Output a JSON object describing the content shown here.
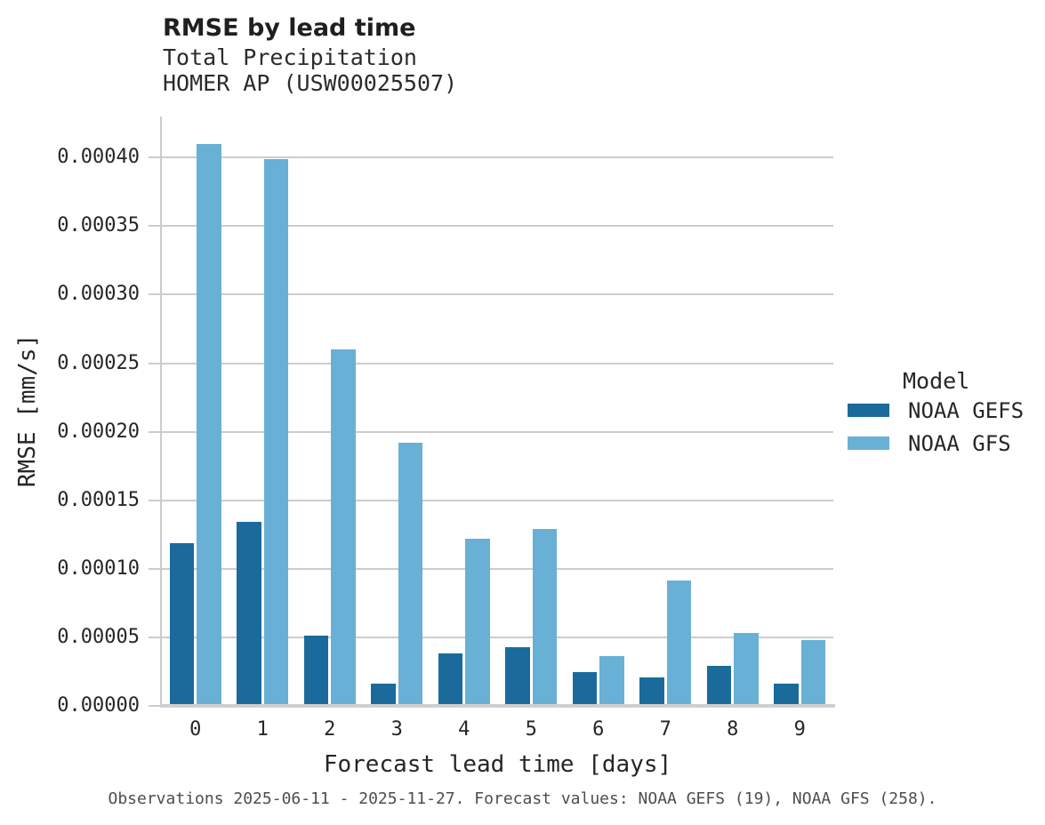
{
  "header": {
    "title": "RMSE by lead time",
    "subtitle_line1": "Total Precipitation",
    "subtitle_line2": "HOMER AP (USW00025507)"
  },
  "chart_data": {
    "type": "bar",
    "title": "RMSE by lead time",
    "subtitle": "Total Precipitation — HOMER AP (USW00025507)",
    "categories": [
      "0",
      "1",
      "2",
      "3",
      "4",
      "5",
      "6",
      "7",
      "8",
      "9"
    ],
    "series": [
      {
        "name": "NOAA GEFS",
        "color": "#1a6b9c",
        "values": [
          0.000119,
          0.000134,
          5.1e-05,
          1.6e-05,
          3.8e-05,
          4.25e-05,
          2.45e-05,
          2.05e-05,
          2.9e-05,
          1.6e-05
        ]
      },
      {
        "name": "NOAA GFS",
        "color": "#69b0d7",
        "values": [
          0.00041,
          0.000399,
          0.00026,
          0.000192,
          0.000122,
          0.000129,
          3.6e-05,
          9.15e-05,
          5.35e-05,
          4.8e-05
        ]
      }
    ],
    "xlabel": "Forecast lead time [days]",
    "ylabel": "RMSE [mm/s]",
    "ylim": [
      0,
      0.00043
    ],
    "yticks": [
      0.0,
      5e-05,
      0.0001,
      0.00015,
      0.0002,
      0.00025,
      0.0003,
      0.00035,
      0.0004
    ],
    "ytick_decimals": 5,
    "grid": "horizontal",
    "grid_color": "#cccccc",
    "axis_color": "#cccccc",
    "legend": {
      "title": "Model",
      "position": "right"
    }
  },
  "footer": {
    "note": "Observations 2025-06-11 - 2025-11-27. Forecast values: NOAA GEFS (19), NOAA GFS (258)."
  }
}
